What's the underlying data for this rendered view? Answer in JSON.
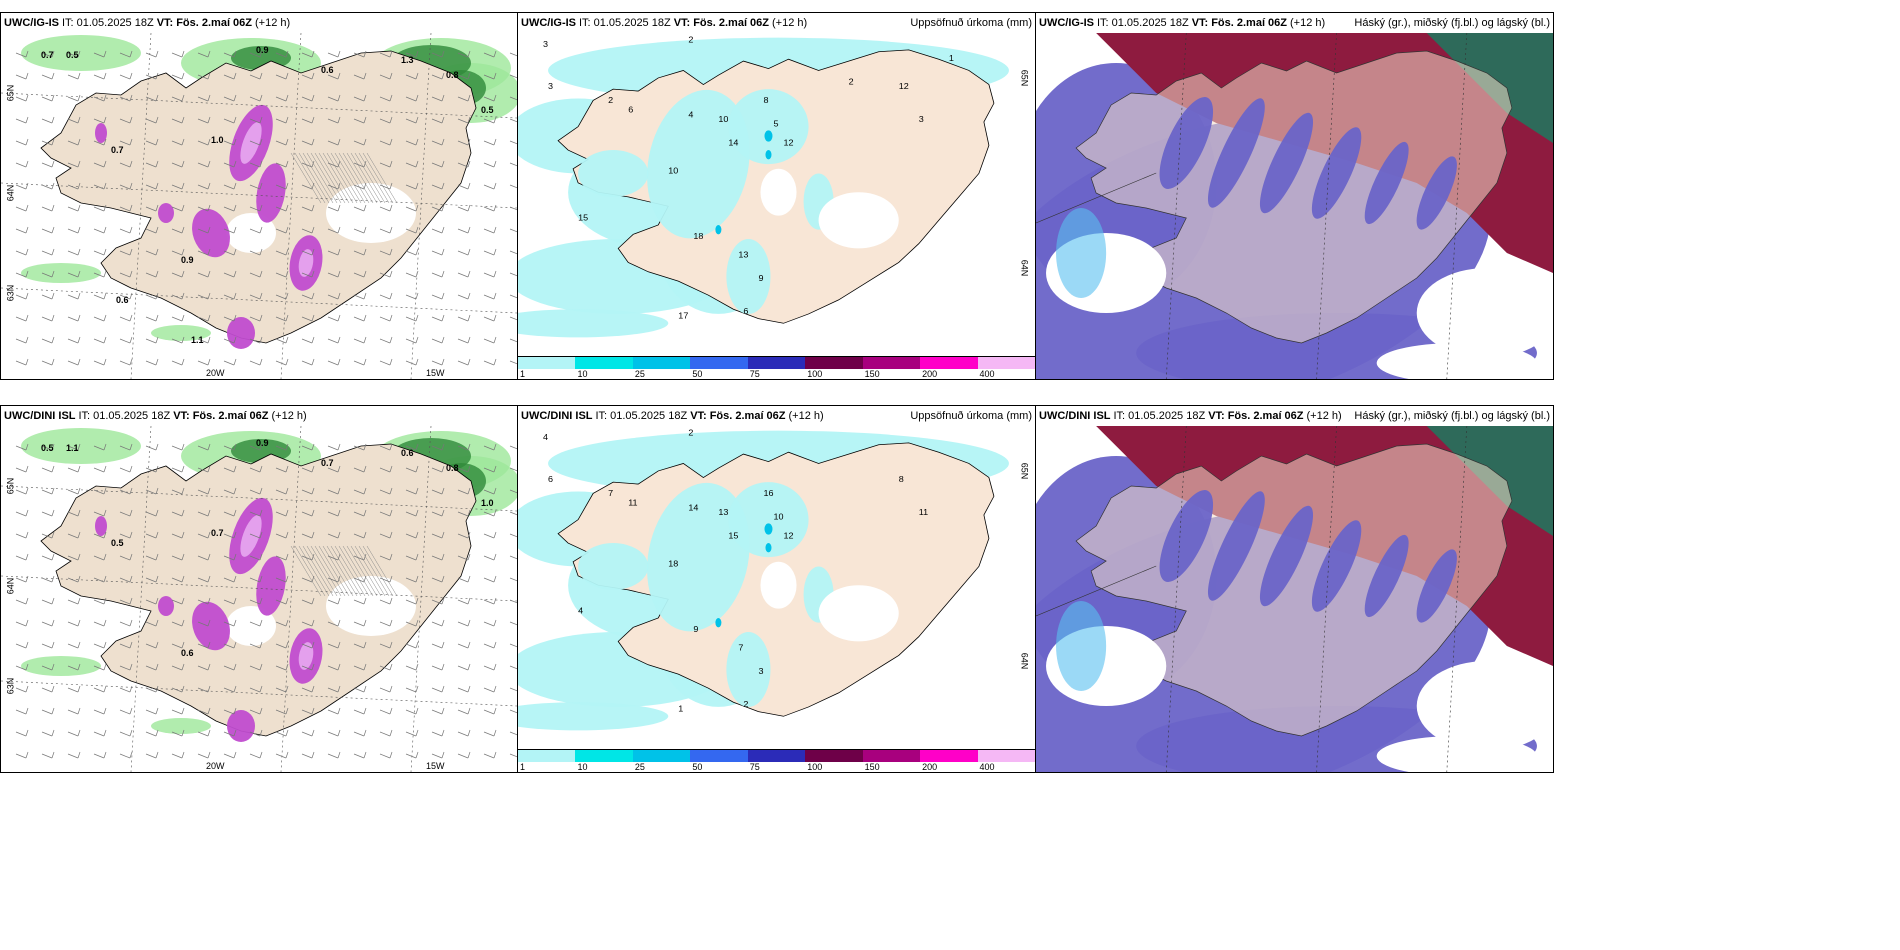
{
  "panels": [
    {
      "model": "UWC/IG-IS",
      "it_label": "IT:",
      "it": "01.05.2025 18Z",
      "vt_label": "VT:",
      "vt": "Fös. 2.maí 06Z",
      "lead": "(+12 h)",
      "title_right": "",
      "lat_labels": [
        "65N",
        "64N",
        "63N"
      ],
      "lon_labels": [
        "20W",
        "15W"
      ]
    },
    {
      "model": "UWC/IG-IS",
      "it_label": "IT:",
      "it": "01.05.2025 18Z",
      "vt_label": "VT:",
      "vt": "Fös. 2.maí 06Z",
      "lead": "(+12 h)",
      "title_right": "Uppsöfnuð úrkoma (mm)",
      "lat_labels": [
        "65N",
        "64N"
      ],
      "lon_labels": []
    },
    {
      "model": "UWC/IG-IS",
      "it_label": "IT:",
      "it": "01.05.2025 18Z",
      "vt_label": "VT:",
      "vt": "Fös. 2.maí 06Z",
      "lead": "(+12 h)",
      "title_right": "Háský (gr.), miðský (fj.bl.) og lágský (bl.)",
      "lat_labels": [],
      "lon_labels": []
    },
    {
      "model": "UWC/DINI ISL",
      "it_label": "IT:",
      "it": "01.05.2025 18Z",
      "vt_label": "VT:",
      "vt": "Fös. 2.maí 06Z",
      "lead": "(+12 h)",
      "title_right": "",
      "lat_labels": [
        "65N",
        "64N",
        "63N"
      ],
      "lon_labels": [
        "20W",
        "15W"
      ]
    },
    {
      "model": "UWC/DINI ISL",
      "it_label": "IT:",
      "it": "01.05.2025 18Z",
      "vt_label": "VT:",
      "vt": "Fös. 2.maí 06Z",
      "lead": "(+12 h)",
      "title_right": "Uppsöfnuð úrkoma (mm)",
      "lat_labels": [
        "65N",
        "64N"
      ],
      "lon_labels": []
    },
    {
      "model": "UWC/DINI ISL",
      "it_label": "IT:",
      "it": "01.05.2025 18Z",
      "vt_label": "VT:",
      "vt": "Fös. 2.maí 06Z",
      "lead": "(+12 h)",
      "title_right": "Háský (gr.), miðský (fj.bl.) og lágský (bl.)",
      "lat_labels": [],
      "lon_labels": []
    }
  ],
  "colorbar": {
    "ticks": [
      "1",
      "10",
      "25",
      "50",
      "75",
      "100",
      "150",
      "200",
      "400"
    ],
    "colors": [
      "#b3f4f6",
      "#00e6e6",
      "#00c2e8",
      "#3468f0",
      "#2b2bb8",
      "#6e0048",
      "#a8007e",
      "#ff00c8",
      "#f5b8f5"
    ]
  },
  "precip_numbers_top": [
    "3",
    "2",
    "3",
    "2",
    "6",
    "4",
    "10",
    "8",
    "5",
    "12",
    "14",
    "10",
    "18",
    "13",
    "9",
    "6",
    "17",
    "15",
    "12",
    "3",
    "2",
    "1"
  ],
  "precip_numbers_bottom": [
    "4",
    "2",
    "6",
    "7",
    "11",
    "14",
    "13",
    "16",
    "10",
    "12",
    "15",
    "18",
    "9",
    "7",
    "3",
    "2",
    "1",
    "4",
    "8",
    "11"
  ],
  "wind_numbers_top": [
    "0.7",
    "0.5",
    "0.9",
    "0.6",
    "1.3",
    "0.8",
    "0.5",
    "0.7",
    "1.0",
    "0.9",
    "0.6",
    "1.1"
  ],
  "wind_numbers_bottom": [
    "0.5",
    "1.1",
    "0.9",
    "0.7",
    "0.6",
    "0.8",
    "1.0",
    "0.5",
    "0.7",
    "0.6"
  ]
}
